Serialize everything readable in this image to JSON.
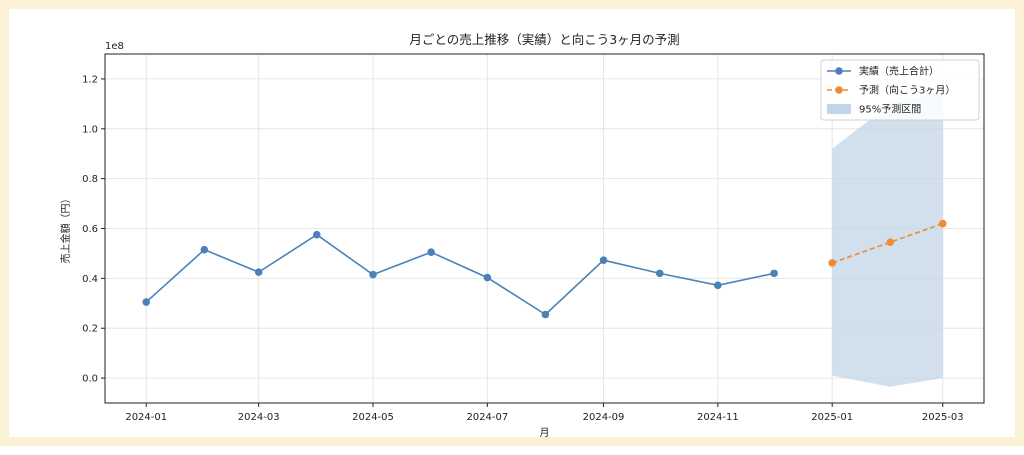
{
  "chart_data": {
    "type": "line",
    "title": "月ごとの売上推移（実績）と向こう3ヶ月の予測",
    "xlabel": "月",
    "ylabel": "売上金額（円）",
    "y_offset_label": "1e8",
    "ylim": [
      -10000000.0,
      130000000.0
    ],
    "y_ticks": [
      0.0,
      0.2,
      0.4,
      0.6,
      0.8,
      1.0,
      1.2
    ],
    "y_tick_labels": [
      "0.0",
      "0.2",
      "0.4",
      "0.6",
      "0.8",
      "1.0",
      "1.2"
    ],
    "y_scale": 100000000,
    "xlim": [
      "2023-12-10",
      "2025-03-23"
    ],
    "x_ticks": [
      "2024-01-01",
      "2024-03-01",
      "2024-05-01",
      "2024-07-01",
      "2024-09-01",
      "2024-11-01",
      "2025-01-01",
      "2025-03-01"
    ],
    "x_tick_labels": [
      "2024-01",
      "2024-03",
      "2024-05",
      "2024-07",
      "2024-09",
      "2024-11",
      "2025-01",
      "2025-03"
    ],
    "grid": true,
    "legend_position": "top-right",
    "series": [
      {
        "name": "実績（売上合計）",
        "style": "solid",
        "color": "#4a82b8",
        "x": [
          "2024-01-01",
          "2024-02-01",
          "2024-03-01",
          "2024-04-01",
          "2024-05-01",
          "2024-06-01",
          "2024-07-01",
          "2024-08-01",
          "2024-09-01",
          "2024-10-01",
          "2024-11-01",
          "2024-12-01"
        ],
        "values": [
          0.305,
          0.515,
          0.425,
          0.575,
          0.415,
          0.505,
          0.403,
          0.255,
          0.473,
          0.42,
          0.372,
          0.42
        ]
      },
      {
        "name": "予測（向こう3ヶ月）",
        "style": "dashed",
        "color": "#ef8a35",
        "x": [
          "2025-01-01",
          "2025-02-01",
          "2025-03-01"
        ],
        "values": [
          0.462,
          0.545,
          0.62
        ]
      }
    ],
    "interval": {
      "name": "95%予測区間",
      "color": "#c3d5e8",
      "x": [
        "2025-01-01",
        "2025-02-01",
        "2025-03-01"
      ],
      "lower": [
        0.01,
        -0.035,
        0.0
      ],
      "upper": [
        0.92,
        1.1,
        1.15
      ]
    }
  }
}
